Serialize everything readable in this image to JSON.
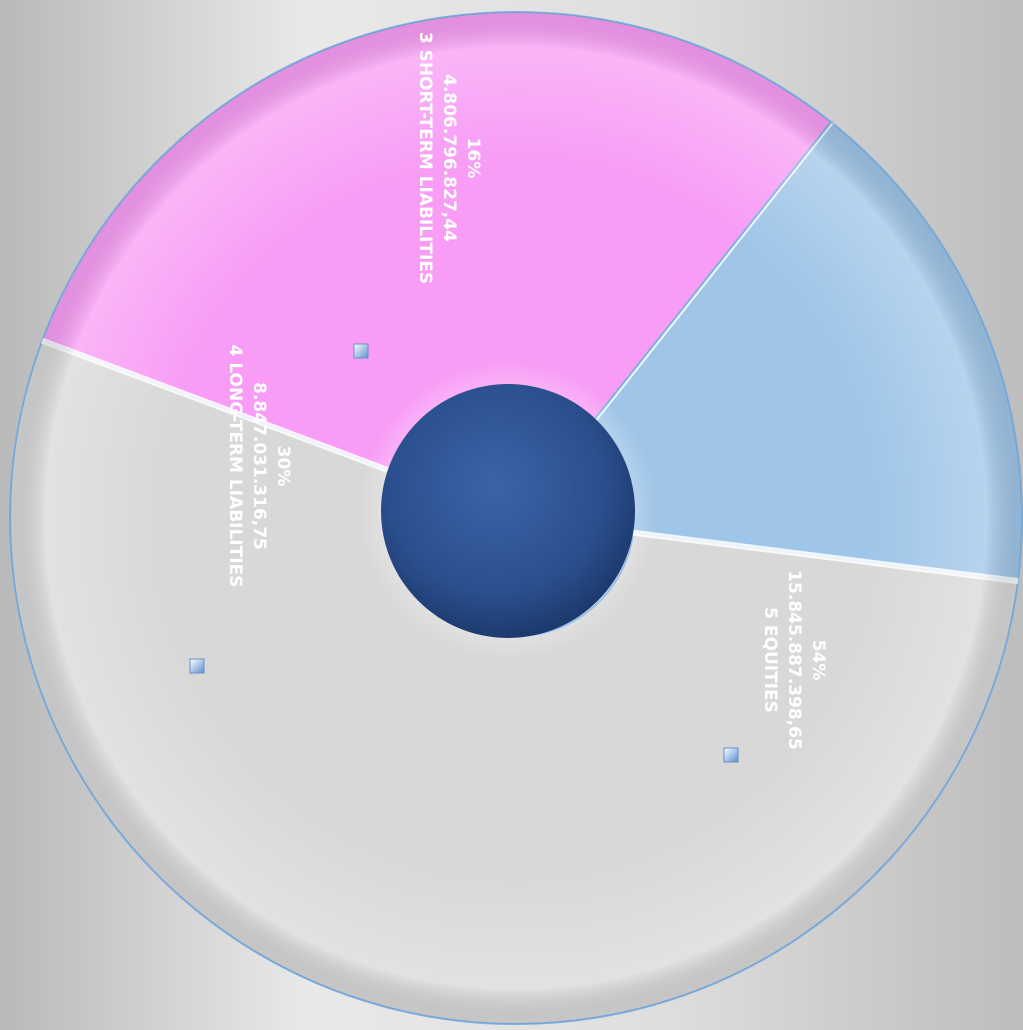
{
  "chart_data": {
    "type": "pie",
    "style": "donut",
    "title": "",
    "legend": "none",
    "labels_rotated": "90deg",
    "slices": [
      {
        "category": "3 SHORT-TERM LIABILITIES",
        "amount": "4.806.796.827,44",
        "percent": "16%",
        "value": 4806796827.44,
        "color": "#9fc5e8"
      },
      {
        "category": "5 EQUITIES",
        "amount": "15.845.887.398,65",
        "percent": "54%",
        "value": 15845887398.65,
        "color": "#d8d8d8"
      },
      {
        "category": "4 LONG-TERM LIABILITIES",
        "amount": "8.847.031.316,75",
        "percent": "30%",
        "value": 8847031316.75,
        "color": "#f89cf5"
      }
    ],
    "hole_color": "#2b4f8e",
    "outline_color": "#7fb0e0"
  }
}
